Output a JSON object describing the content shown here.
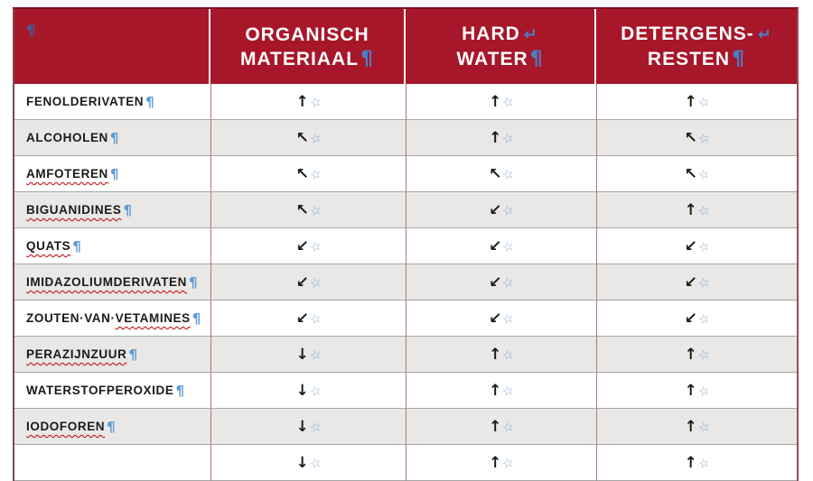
{
  "marks": {
    "pilcrow": "¶",
    "line_break": "↵",
    "star": "☆"
  },
  "colors": {
    "header_bg": "#A81629",
    "header_text": "#FFFFFF",
    "row_bg": "#FFFFFF",
    "row_alt_bg": "#E9E8E6",
    "pilcrow_blue": "#5B9BD5",
    "header_mark_blue": "#4A7EC8",
    "star_blue": "#7FA9D9",
    "squiggle_red": "#C00000",
    "vline_red": "#B0777C",
    "hline_gray": "#A6A6A6",
    "arrow_black": "#1A1A1A"
  },
  "header": {
    "columns": [
      {
        "line1": "",
        "line2": ""
      },
      {
        "line1": "ORGANISCH",
        "line2": "MATERIAAL"
      },
      {
        "line1": "HARD",
        "line2": "WATER"
      },
      {
        "line1": "DETERGENS-",
        "line2": "RESTEN"
      }
    ]
  },
  "rows": [
    {
      "label_plain": "FENOLDERIVATEN",
      "label_misspelled": "",
      "arrows": [
        "↑",
        "↑",
        "↑"
      ]
    },
    {
      "label_plain": "ALCOHOLEN",
      "label_misspelled": "",
      "arrows": [
        "↖",
        "↑",
        "↖"
      ]
    },
    {
      "label_plain": "",
      "label_misspelled": "AMFOTEREN",
      "arrows": [
        "↖",
        "↖",
        "↖"
      ]
    },
    {
      "label_plain": "",
      "label_misspelled": "BIGUANIDINES",
      "arrows": [
        "↖",
        "↙",
        "↑"
      ]
    },
    {
      "label_plain": "",
      "label_misspelled": "QUATS",
      "arrows": [
        "↙",
        "↙",
        "↙"
      ]
    },
    {
      "label_plain": "",
      "label_misspelled": "IMIDAZOLIUMDERIVATEN",
      "arrows": [
        "↙",
        "↙",
        "↙"
      ]
    },
    {
      "label_plain": "ZOUTEN·VAN·",
      "label_misspelled": "VETAMINES",
      "arrows": [
        "↙",
        "↙",
        "↙"
      ]
    },
    {
      "label_plain": "",
      "label_misspelled": "PERAZIJNZUUR",
      "arrows": [
        "↓",
        "↑",
        "↑"
      ]
    },
    {
      "label_plain": "WATERSTOFPEROXIDE",
      "label_misspelled": "",
      "arrows": [
        "↓",
        "↑",
        "↑"
      ]
    },
    {
      "label_plain": "",
      "label_misspelled": "IODOFOREN",
      "arrows": [
        "↓",
        "↑",
        "↑"
      ]
    },
    {
      "label_plain": "",
      "label_misspelled": "",
      "arrows": [
        "↓",
        "↑",
        "↑"
      ]
    }
  ]
}
